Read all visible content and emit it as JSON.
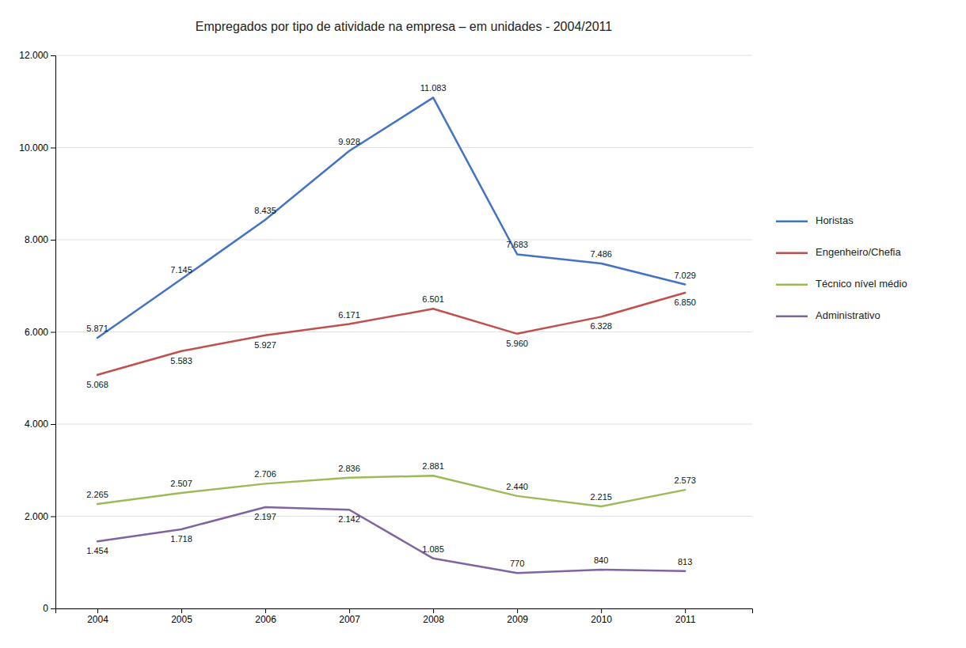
{
  "chart_data": {
    "type": "line",
    "title": "Empregados por tipo de atividade na empresa – em unidades - 2004/2011",
    "x": [
      2004,
      2005,
      2006,
      2007,
      2008,
      2009,
      2010,
      2011
    ],
    "series": [
      {
        "name": "Horistas",
        "color": "#4472C4",
        "values": [
          5871,
          7145,
          8435,
          9928,
          11083,
          7683,
          7486,
          7029
        ],
        "value_labels": [
          "5.871",
          "7.145",
          "8.435",
          "9.928",
          "11.083",
          "7.683",
          "7.486",
          "7.029"
        ]
      },
      {
        "name": "Engenheiro/Chefia",
        "color": "#C0504D",
        "values": [
          5068,
          5583,
          5927,
          6171,
          6501,
          5960,
          6328,
          6850
        ],
        "value_labels": [
          "5.068",
          "5.583",
          "5.927",
          "6.171",
          "6.501",
          "5.960",
          "6.328",
          "6.850"
        ]
      },
      {
        "name": "Técnico nível médio",
        "color": "#9BBB59",
        "values": [
          2265,
          2507,
          2706,
          2836,
          2881,
          2440,
          2215,
          2573
        ],
        "value_labels": [
          "2.265",
          "2.507",
          "2.706",
          "2.836",
          "2.881",
          "2.440",
          "2.215",
          "2.573"
        ]
      },
      {
        "name": "Administrativo",
        "color": "#8064A2",
        "values": [
          1454,
          1718,
          2197,
          2142,
          1085,
          770,
          840,
          813
        ],
        "value_labels": [
          "1.454",
          "1.718",
          "2.197",
          "2.142",
          "1.085",
          "770",
          "840",
          "813"
        ]
      }
    ],
    "xlim": [
      2003.5,
      2011.8
    ],
    "xticks": [
      2004,
      2005,
      2006,
      2007,
      2008,
      2009,
      2010,
      2011
    ],
    "ylim": [
      0,
      12000
    ],
    "yticks": [
      0,
      {
        "value": 2000,
        "label": "2.000"
      },
      {
        "value": 4000,
        "label": "4.000"
      },
      {
        "value": 6000,
        "label": "6.000"
      },
      {
        "value": 8000,
        "label": "8.000"
      },
      {
        "value": 10000,
        "label": "10.000"
      },
      {
        "value": 12000,
        "label": "12.000"
      }
    ],
    "grid": true,
    "legend": "right",
    "data_labels": true
  }
}
